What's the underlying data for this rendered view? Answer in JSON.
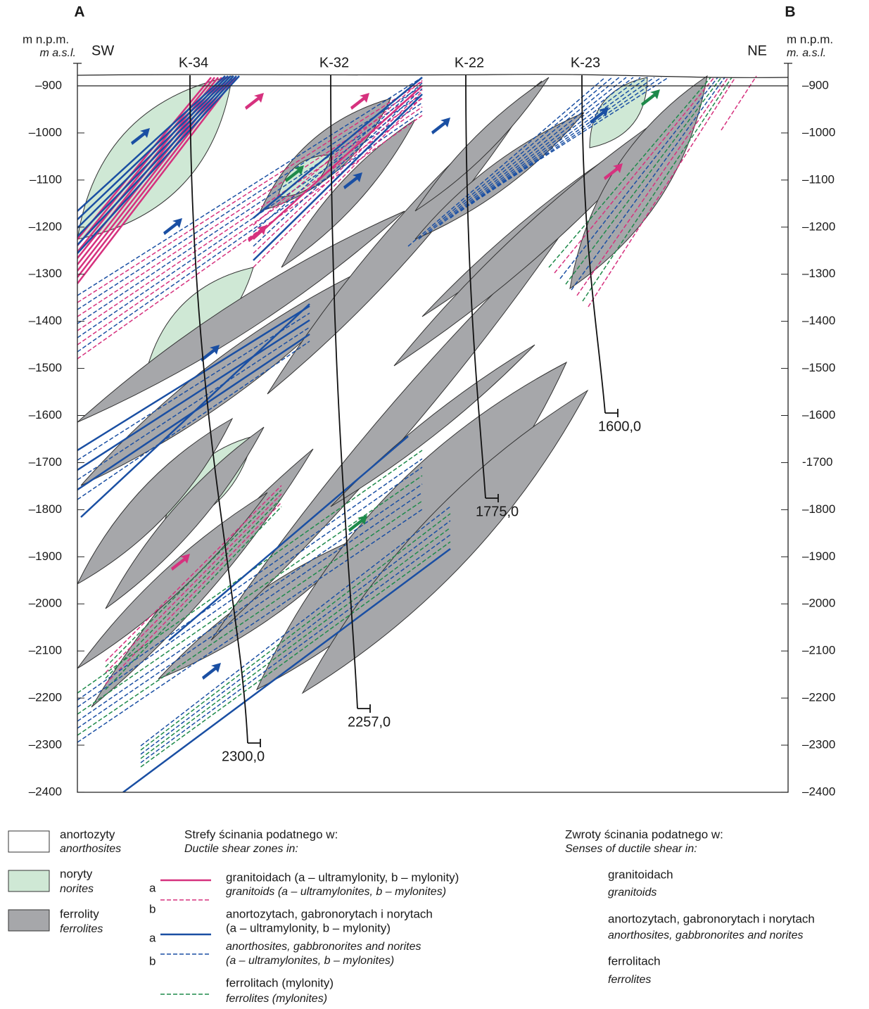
{
  "header": {
    "left_label": "A",
    "right_label": "B"
  },
  "axis": {
    "left_title": "m n.p.m.",
    "left_subtitle": "m a.s.l.",
    "right_title": "m n.p.m.",
    "right_subtitle": "m. a.s.l.",
    "left_ticks": [
      "–900",
      "–1000",
      "–1100",
      "–1200",
      "–1300",
      "–1400",
      "–1500",
      "–1600",
      "–1700",
      "–1800",
      "–1900",
      "–2000",
      "–2100",
      "–2200",
      "–2300",
      "–2400"
    ],
    "right_ticks": [
      "–900",
      "–1000",
      "–1100",
      "–1200",
      "–1300",
      "–1400",
      "–1500",
      "–1600",
      "-1700",
      "–1800",
      "–1900",
      "–2000",
      "–2100",
      "–2200",
      "–2300",
      "–2400"
    ]
  },
  "section": {
    "sw": "SW",
    "ne": "NE",
    "boreholes": [
      {
        "name": "K-34",
        "depth": "2300,0"
      },
      {
        "name": "K-32",
        "depth": "2257,0"
      },
      {
        "name": "K-22",
        "depth": "1775,0"
      },
      {
        "name": "K-23",
        "depth": "1600,0"
      }
    ]
  },
  "legend": {
    "rocks": [
      {
        "label": "anortozyty",
        "label_en": "anorthosites"
      },
      {
        "label": "noryty",
        "label_en": "norites"
      },
      {
        "label": "ferrolity",
        "label_en": "ferrolites"
      }
    ],
    "zones": {
      "title": "Strefy ścinania podatnego w:",
      "title_en": "Ductile shear zones in:",
      "granitoids": {
        "ab": [
          "a",
          "b"
        ],
        "label": "granitoidach (a – ultramylonity, b – mylonity)",
        "label_en": "granitoids (a – ultramylonites, b – mylonites)"
      },
      "anorthosites": {
        "ab": [
          "a",
          "b"
        ],
        "label": "anortozytach, gabronorytach i norytach",
        "label2": "(a – ultramylonity, b – mylonity)",
        "label_en": "anorthosites, gabbronorites and norites",
        "label_en2": "(a – ultramylonites, b – mylonites)"
      },
      "ferrolites": {
        "label": "ferrolitach (mylonity)",
        "label_en": "ferrolites (mylonites)"
      }
    },
    "senses": {
      "title": "Zwroty ścinania podatnego w:",
      "title_en": "Senses of ductile shear in:",
      "items": [
        {
          "label": "granitoidach",
          "label_en": "granitoids"
        },
        {
          "label": "anortozytach, gabronorytach i norytach",
          "label_en": "anorthosites, gabbronorites and norites"
        },
        {
          "label": "ferrolitach",
          "label_en": "ferrolites"
        }
      ]
    }
  }
}
